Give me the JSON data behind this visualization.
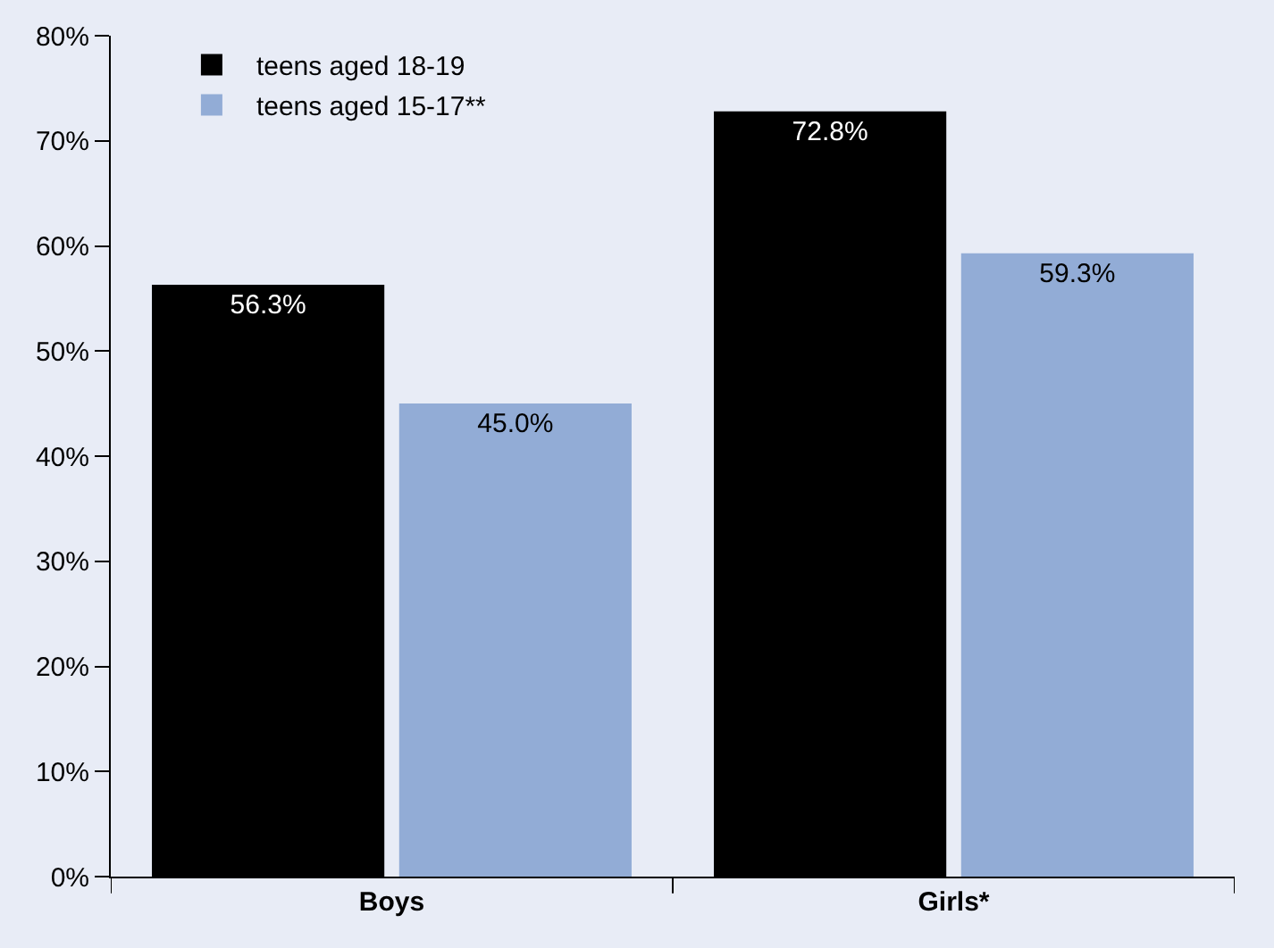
{
  "chart_data": {
    "type": "bar",
    "categories": [
      "Boys",
      "Girls*"
    ],
    "series": [
      {
        "name": "teens aged 18-19",
        "color": "#000000",
        "values": [
          56.3,
          72.8
        ],
        "value_labels": [
          "56.3%",
          "72.8%"
        ]
      },
      {
        "name": "teens aged 15-17**",
        "color": "#92acd6",
        "values": [
          45.0,
          59.3
        ],
        "value_labels": [
          "45.0%",
          "59.3%"
        ]
      }
    ],
    "ylim": [
      0,
      80
    ],
    "yticks": [
      {
        "value": 0,
        "label": "0%"
      },
      {
        "value": 10,
        "label": "10%"
      },
      {
        "value": 20,
        "label": "20%"
      },
      {
        "value": 30,
        "label": "30%"
      },
      {
        "value": 40,
        "label": "40%"
      },
      {
        "value": 50,
        "label": "50%"
      },
      {
        "value": 60,
        "label": "60%"
      },
      {
        "value": 70,
        "label": "70%"
      },
      {
        "value": 80,
        "label": "80%"
      }
    ],
    "grid": false,
    "legend": "top left"
  }
}
